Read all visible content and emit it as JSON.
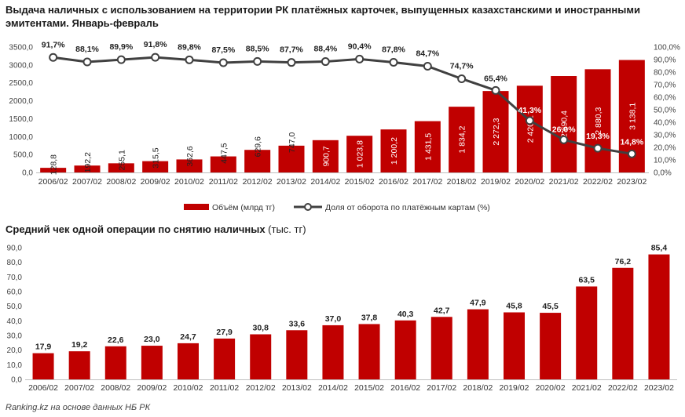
{
  "chart_data": [
    {
      "type": "bar+line",
      "title": "Выдача наличных с использованием на территории РК платёжных карточек, выпущенных казахстанскими и иностранными эмитентами. Январь-февраль",
      "categories": [
        "2006/02",
        "2007/02",
        "2008/02",
        "2009/02",
        "2010/02",
        "2011/02",
        "2012/02",
        "2013/02",
        "2014/02",
        "2015/02",
        "2016/02",
        "2017/02",
        "2018/02",
        "2019/02",
        "2020/02",
        "2021/02",
        "2022/02",
        "2023/02"
      ],
      "series": [
        {
          "name": "Объём (млрд тг)",
          "type": "bar",
          "axis": "left",
          "values": [
            128.8,
            192.2,
            255.1,
            315.5,
            362.6,
            447.5,
            629.6,
            747.0,
            900.7,
            1023.8,
            1200.2,
            1431.5,
            1834.2,
            2272.3,
            2420.1,
            2690.4,
            2880.3,
            3138.1
          ],
          "labels": [
            "128,8",
            "192,2",
            "255,1",
            "315,5",
            "362,6",
            "447,5",
            "629,6",
            "747,0",
            "900,7",
            "1 023,8",
            "1 200,2",
            "1 431,5",
            "1 834,2",
            "2 272,3",
            "2 420,1",
            "2 690,4",
            "2 880,3",
            "3 138,1"
          ]
        },
        {
          "name": "Доля от оборота по платёжным картам (%)",
          "type": "line",
          "axis": "right",
          "values": [
            91.7,
            88.1,
            89.9,
            91.8,
            89.8,
            87.5,
            88.5,
            87.7,
            88.4,
            90.4,
            87.8,
            84.7,
            74.7,
            65.4,
            41.3,
            26.0,
            19.3,
            14.8
          ],
          "labels": [
            "91,7%",
            "88,1%",
            "89,9%",
            "91,8%",
            "89,8%",
            "87,5%",
            "88,5%",
            "87,7%",
            "88,4%",
            "90,4%",
            "87,8%",
            "84,7%",
            "74,7%",
            "65,4%",
            "41,3%",
            "26,0%",
            "19,3%",
            "14,8%"
          ]
        }
      ],
      "ylim_left": [
        0,
        3500
      ],
      "yticks_left": [
        "0,0",
        "500,0",
        "1000,0",
        "1500,0",
        "2000,0",
        "2500,0",
        "3000,0",
        "3500,0"
      ],
      "ylim_right": [
        0,
        100
      ],
      "yticks_right": [
        "0,0%",
        "10,0%",
        "20,0%",
        "30,0%",
        "40,0%",
        "50,0%",
        "60,0%",
        "70,0%",
        "80,0%",
        "90,0%",
        "100,0%"
      ],
      "legend_position": "bottom",
      "colors": {
        "bar": "#c00000",
        "line": "#404040",
        "marker_fill": "#ffffff"
      }
    },
    {
      "type": "bar",
      "title_bold": "Средний чек одной операции по снятию наличных",
      "title_rest": " (тыс. тг)",
      "categories": [
        "2006/02",
        "2007/02",
        "2008/02",
        "2009/02",
        "2010/02",
        "2011/02",
        "2012/02",
        "2013/02",
        "2014/02",
        "2015/02",
        "2016/02",
        "2017/02",
        "2018/02",
        "2019/02",
        "2020/02",
        "2021/02",
        "2022/02",
        "2023/02"
      ],
      "values": [
        17.9,
        19.2,
        22.6,
        23.0,
        24.7,
        27.9,
        30.8,
        33.6,
        37.0,
        37.8,
        40.3,
        42.7,
        47.9,
        45.8,
        45.5,
        63.5,
        76.2,
        85.4
      ],
      "labels": [
        "17,9",
        "19,2",
        "22,6",
        "23,0",
        "24,7",
        "27,9",
        "30,8",
        "33,6",
        "37,0",
        "37,8",
        "40,3",
        "42,7",
        "47,9",
        "45,8",
        "45,5",
        "63,5",
        "76,2",
        "85,4"
      ],
      "ylim": [
        0,
        90
      ],
      "yticks": [
        "0,0",
        "10,0",
        "20,0",
        "30,0",
        "40,0",
        "50,0",
        "60,0",
        "70,0",
        "80,0",
        "90,0"
      ],
      "colors": {
        "bar": "#c00000"
      }
    }
  ],
  "source": "Ranking.kz на основе данных НБ РК"
}
